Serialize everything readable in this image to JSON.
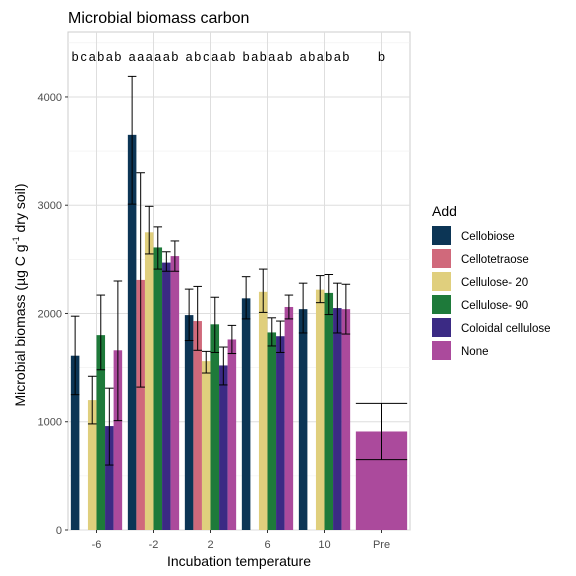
{
  "chart_data": {
    "type": "bar",
    "title": "Microbial biomass carbon",
    "xlabel": "Incubation temperature",
    "ylabel": {
      "prefix": "Microbial biomass (µg C g",
      "superscript": "-1",
      "suffix": " dry soil)"
    },
    "ylim": [
      0,
      4600
    ],
    "yticks": [
      0,
      1000,
      2000,
      3000,
      4000
    ],
    "grid": true,
    "legend_position": "right",
    "categories": [
      "-6",
      "-2",
      "2",
      "6",
      "10",
      "Pre"
    ],
    "series": [
      {
        "name": "Cellobiose",
        "color": "#0c3555",
        "values": [
          1610,
          3650,
          1985,
          2140,
          2040,
          null
        ],
        "err_low": [
          1250,
          3010,
          1750,
          1950,
          1820,
          null
        ],
        "err_high": [
          1975,
          4190,
          2225,
          2340,
          2280,
          null
        ],
        "letters": [
          "b",
          "a",
          "a",
          "b",
          "a",
          null
        ]
      },
      {
        "name": "Cellotetraose",
        "color": "#d0697b",
        "values": [
          null,
          2310,
          1930,
          null,
          null,
          null
        ],
        "err_low": [
          null,
          1320,
          1660,
          null,
          null,
          null
        ],
        "err_high": [
          null,
          3300,
          2250,
          null,
          null,
          null
        ],
        "letters": [
          "c",
          "a",
          "b",
          "a",
          "b",
          null
        ]
      },
      {
        "name": "Cellulose- 20",
        "color": "#e0cf7d",
        "values": [
          1200,
          2750,
          1560,
          2200,
          2220,
          null
        ],
        "err_low": [
          980,
          2550,
          1450,
          2010,
          2100,
          null
        ],
        "err_high": [
          1420,
          2990,
          1650,
          2410,
          2350,
          null
        ],
        "letters": [
          "a",
          "a",
          "c",
          "b",
          "a",
          null
        ]
      },
      {
        "name": "Cellulose- 90",
        "color": "#1e7a3a",
        "values": [
          1800,
          2610,
          1900,
          1825,
          2190,
          null
        ],
        "err_low": [
          1480,
          2410,
          1640,
          1700,
          1990,
          null
        ],
        "err_high": [
          2170,
          2800,
          2150,
          1960,
          2360,
          null
        ],
        "letters": [
          "b",
          "a",
          "a",
          "a",
          "b",
          null
        ]
      },
      {
        "name": "Coloidal cellulose",
        "color": "#3b2a84",
        "values": [
          960,
          2470,
          1520,
          1790,
          2050,
          null
        ],
        "err_low": [
          600,
          2390,
          1340,
          1640,
          1820,
          null
        ],
        "err_high": [
          1310,
          2570,
          1690,
          1930,
          2280,
          null
        ],
        "letters": [
          "a",
          "a",
          "a",
          "a",
          "a",
          null
        ]
      },
      {
        "name": "None",
        "color": "#ab4a9c",
        "values": [
          1660,
          2530,
          1760,
          2060,
          2040,
          910
        ],
        "err_low": [
          1010,
          2390,
          1630,
          1950,
          1810,
          650
        ],
        "err_high": [
          2300,
          2670,
          1890,
          2170,
          2270,
          1170
        ],
        "letters": [
          "b",
          "b",
          "b",
          "b",
          "b",
          "b"
        ]
      }
    ]
  }
}
